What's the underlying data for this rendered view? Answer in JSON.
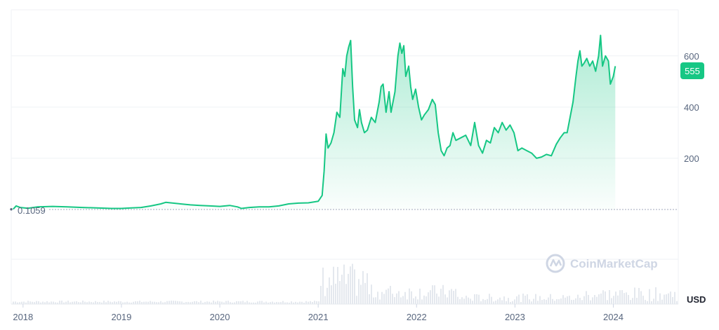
{
  "chart_data": {
    "type": "area",
    "currency": "USD",
    "start_value_label": "0.1059",
    "current_value_label": "555",
    "watermark": "CoinMarketCap",
    "colors": {
      "line": "#16c784",
      "fill_top": "#16c784",
      "grid": "#eff2f5",
      "text": "#58667e",
      "volume": "#e4e8ee"
    },
    "grid": true,
    "y_ticks": [
      200,
      400,
      600
    ],
    "x_ticks": [
      "2018",
      "2019",
      "2020",
      "2021",
      "2022",
      "2023",
      "2024"
    ],
    "ylim": [
      0,
      780
    ],
    "xlim": [
      2017.88,
      2024.66
    ],
    "points": [
      [
        2017.9,
        1
      ],
      [
        2017.93,
        14
      ],
      [
        2017.97,
        8
      ],
      [
        2018.05,
        5
      ],
      [
        2018.15,
        10
      ],
      [
        2018.3,
        12
      ],
      [
        2018.45,
        10
      ],
      [
        2018.6,
        8
      ],
      [
        2018.75,
        6
      ],
      [
        2018.9,
        4
      ],
      [
        2019.0,
        4
      ],
      [
        2019.1,
        6
      ],
      [
        2019.2,
        8
      ],
      [
        2019.3,
        14
      ],
      [
        2019.4,
        22
      ],
      [
        2019.45,
        28
      ],
      [
        2019.5,
        26
      ],
      [
        2019.6,
        22
      ],
      [
        2019.7,
        18
      ],
      [
        2019.8,
        16
      ],
      [
        2019.9,
        14
      ],
      [
        2020.0,
        12
      ],
      [
        2020.1,
        16
      ],
      [
        2020.18,
        10
      ],
      [
        2020.22,
        4
      ],
      [
        2020.3,
        8
      ],
      [
        2020.4,
        10
      ],
      [
        2020.5,
        10
      ],
      [
        2020.6,
        14
      ],
      [
        2020.7,
        22
      ],
      [
        2020.8,
        25
      ],
      [
        2020.9,
        26
      ],
      [
        2021.0,
        32
      ],
      [
        2021.04,
        55
      ],
      [
        2021.06,
        150
      ],
      [
        2021.08,
        295
      ],
      [
        2021.1,
        240
      ],
      [
        2021.13,
        260
      ],
      [
        2021.16,
        300
      ],
      [
        2021.19,
        380
      ],
      [
        2021.22,
        360
      ],
      [
        2021.25,
        550
      ],
      [
        2021.27,
        520
      ],
      [
        2021.29,
        600
      ],
      [
        2021.31,
        635
      ],
      [
        2021.33,
        660
      ],
      [
        2021.35,
        480
      ],
      [
        2021.37,
        350
      ],
      [
        2021.4,
        320
      ],
      [
        2021.42,
        390
      ],
      [
        2021.44,
        340
      ],
      [
        2021.47,
        300
      ],
      [
        2021.5,
        310
      ],
      [
        2021.54,
        360
      ],
      [
        2021.58,
        340
      ],
      [
        2021.62,
        420
      ],
      [
        2021.64,
        480
      ],
      [
        2021.66,
        490
      ],
      [
        2021.69,
        380
      ],
      [
        2021.72,
        460
      ],
      [
        2021.74,
        380
      ],
      [
        2021.78,
        460
      ],
      [
        2021.81,
        600
      ],
      [
        2021.83,
        650
      ],
      [
        2021.85,
        610
      ],
      [
        2021.87,
        640
      ],
      [
        2021.89,
        520
      ],
      [
        2021.92,
        560
      ],
      [
        2021.94,
        480
      ],
      [
        2021.96,
        430
      ],
      [
        2021.99,
        470
      ],
      [
        2022.02,
        400
      ],
      [
        2022.05,
        350
      ],
      [
        2022.08,
        370
      ],
      [
        2022.12,
        390
      ],
      [
        2022.16,
        430
      ],
      [
        2022.19,
        410
      ],
      [
        2022.22,
        300
      ],
      [
        2022.25,
        230
      ],
      [
        2022.28,
        210
      ],
      [
        2022.31,
        240
      ],
      [
        2022.34,
        250
      ],
      [
        2022.37,
        300
      ],
      [
        2022.4,
        270
      ],
      [
        2022.45,
        280
      ],
      [
        2022.5,
        290
      ],
      [
        2022.55,
        250
      ],
      [
        2022.59,
        340
      ],
      [
        2022.63,
        250
      ],
      [
        2022.67,
        220
      ],
      [
        2022.71,
        270
      ],
      [
        2022.75,
        260
      ],
      [
        2022.79,
        320
      ],
      [
        2022.83,
        300
      ],
      [
        2022.87,
        340
      ],
      [
        2022.91,
        310
      ],
      [
        2022.95,
        330
      ],
      [
        2022.99,
        300
      ],
      [
        2023.03,
        230
      ],
      [
        2023.07,
        240
      ],
      [
        2023.12,
        230
      ],
      [
        2023.17,
        220
      ],
      [
        2023.22,
        200
      ],
      [
        2023.27,
        205
      ],
      [
        2023.32,
        215
      ],
      [
        2023.37,
        210
      ],
      [
        2023.42,
        255
      ],
      [
        2023.46,
        280
      ],
      [
        2023.5,
        300
      ],
      [
        2023.53,
        300
      ],
      [
        2023.56,
        360
      ],
      [
        2023.59,
        420
      ],
      [
        2023.62,
        520
      ],
      [
        2023.64,
        580
      ],
      [
        2023.66,
        620
      ],
      [
        2023.68,
        560
      ],
      [
        2023.7,
        570
      ],
      [
        2023.73,
        590
      ],
      [
        2023.76,
        560
      ],
      [
        2023.79,
        580
      ],
      [
        2023.82,
        540
      ],
      [
        2023.85,
        600
      ],
      [
        2023.87,
        680
      ],
      [
        2023.89,
        560
      ],
      [
        2023.92,
        600
      ],
      [
        2023.95,
        580
      ],
      [
        2023.97,
        490
      ],
      [
        2024.0,
        520
      ],
      [
        2024.02,
        560
      ]
    ]
  }
}
